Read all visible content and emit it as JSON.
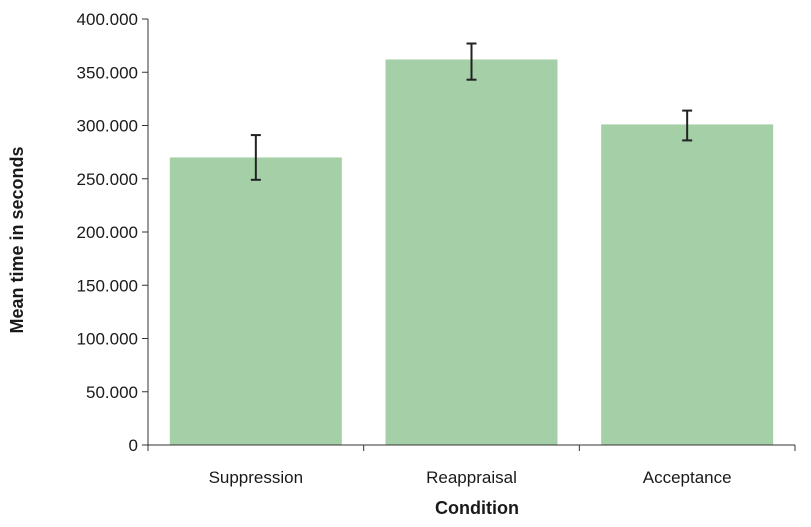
{
  "chart_data": {
    "type": "bar",
    "categories": [
      "Suppression",
      "Reappraisal",
      "Acceptance"
    ],
    "values": [
      270,
      362,
      301
    ],
    "error_low": [
      249,
      343,
      286
    ],
    "error_high": [
      291,
      377,
      314
    ],
    "xlabel": "Condition",
    "ylabel": "Mean time in seconds",
    "ylim": [
      0,
      400
    ],
    "yticks": [
      "0",
      "50.000",
      "100.000",
      "150.000",
      "200.000",
      "250.000",
      "300.000",
      "350.000",
      "400.000"
    ],
    "ytick_values": [
      0,
      50,
      100,
      150,
      200,
      250,
      300,
      350,
      400
    ],
    "grid": false,
    "bar_color": "#a5d0a7",
    "axis_color": "#333333"
  }
}
